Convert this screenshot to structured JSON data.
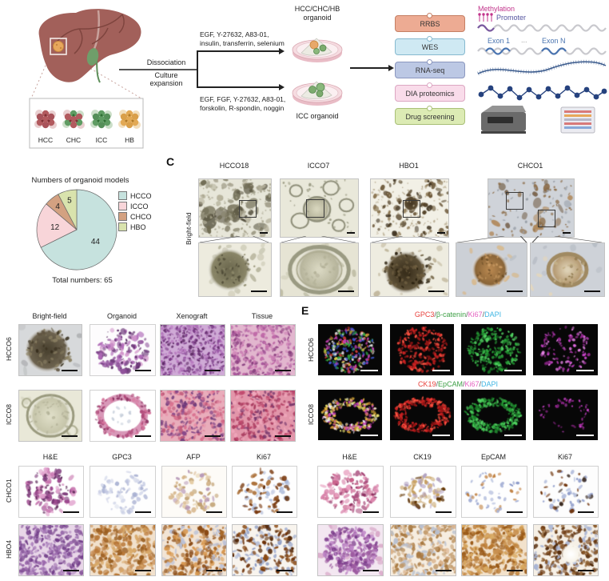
{
  "schematic": {
    "tumor_type_labels": [
      "HCC",
      "CHC",
      "ICC",
      "HB"
    ],
    "dissociation": "Dissociation",
    "culture": "Culture",
    "expansion": "expansion",
    "media_top": [
      "EGF, Y-27632, A83-01,",
      "insulin, transferrin, selenium"
    ],
    "media_bottom": [
      "EGF, FGF, Y-27632, A83-01,",
      "forskolin, R-spondin, noggin"
    ],
    "dish_top_label_line1": "HCC/CHC/HB",
    "dish_top_label_line2": "organoid",
    "dish_bottom_label": "ICC organoid",
    "methods": [
      {
        "label": "RRBS",
        "bg": "#edab93",
        "border": "#c57f63"
      },
      {
        "label": "WES",
        "bg": "#cfe9f3",
        "border": "#86b9cf"
      },
      {
        "label": "RNA-seq",
        "bg": "#bcc8e4",
        "border": "#8b97bf"
      },
      {
        "label": "DIA proteomics",
        "bg": "#f9dcea",
        "border": "#dca6c2"
      },
      {
        "label": "Drug screening",
        "bg": "#dcebb4",
        "border": "#a9c077"
      }
    ],
    "genome_annotations": {
      "methylation": "Methylation",
      "promoter": "Promoter",
      "exon1": "Exon 1",
      "ellipsis": "...",
      "exonN": "Exon N",
      "methylation_color": "#c2358c",
      "promoter_color": "#5555a0",
      "exon_color": "#4a74b0"
    }
  },
  "chart_data": {
    "type": "pie",
    "title": "Numbers of organoid models",
    "labels": [
      "HCCO",
      "ICCO",
      "CHCO",
      "HBO"
    ],
    "values": [
      44,
      12,
      4,
      5
    ],
    "colors": [
      "#c6e2de",
      "#f8d5d9",
      "#d3a181",
      "#d9e3ad"
    ],
    "total_label": "Total numbers: 65",
    "legend_position": "right",
    "start_angle_deg": 0,
    "direction": "clockwise"
  },
  "panel_c": {
    "label": "C",
    "side_label": "Bright-field",
    "columns": [
      "HCCO18",
      "ICCO7",
      "HBO1",
      "CHCO1"
    ]
  },
  "panel_d": {
    "columns": [
      "Bright-field",
      "Organoid",
      "Xenograft",
      "Tissue"
    ],
    "rows": [
      "HCCO6",
      "ICCO8"
    ]
  },
  "panel_e": {
    "label": "E",
    "rows": [
      {
        "label": "HCCO6",
        "title_segments": [
          {
            "text": "GPC3",
            "color": "#e8413c"
          },
          {
            "text": "/",
            "color": "#555555"
          },
          {
            "text": "β-catenin",
            "color": "#3fa047"
          },
          {
            "text": "/",
            "color": "#555555"
          },
          {
            "text": "Ki67",
            "color": "#e561c1"
          },
          {
            "text": "/",
            "color": "#555555"
          },
          {
            "text": "DAPI",
            "color": "#3fb6e3"
          }
        ]
      },
      {
        "label": "ICCO8",
        "title_segments": [
          {
            "text": "CK19",
            "color": "#e8413c"
          },
          {
            "text": "/",
            "color": "#555555"
          },
          {
            "text": "EpCAM",
            "color": "#3fa047"
          },
          {
            "text": "/",
            "color": "#555555"
          },
          {
            "text": "Ki67",
            "color": "#e561c1"
          },
          {
            "text": "/",
            "color": "#555555"
          },
          {
            "text": "DAPI",
            "color": "#3fb6e3"
          }
        ]
      }
    ]
  },
  "panel_ihc_left": {
    "columns": [
      "H&E",
      "GPC3",
      "AFP",
      "Ki67"
    ],
    "rows": [
      "CHCO1",
      "HBO4"
    ]
  },
  "panel_ihc_right": {
    "columns": [
      "H&E",
      "CK19",
      "EpCAM",
      "Ki67"
    ]
  }
}
